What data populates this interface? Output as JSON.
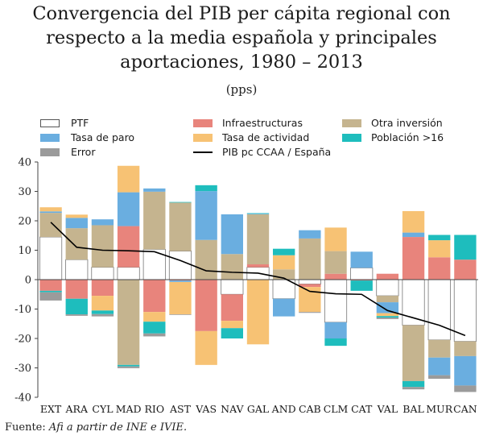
{
  "title_lines": [
    "Convergencia del PIB per cápita regional con",
    "respecto a la media española y principales",
    "aportaciones, 1980 – 2013"
  ],
  "subtitle": "(pps)",
  "source": {
    "prefix": "Fuente:",
    "text": "Afi a partir de INE e IVIE."
  },
  "legend": [
    {
      "name": "PTF",
      "color": "#ffffff",
      "kind": "box"
    },
    {
      "name": "Infraestructuras",
      "color": "#e8847c",
      "kind": "box"
    },
    {
      "name": "Otra inversión",
      "color": "#c5b48f",
      "kind": "box"
    },
    {
      "name": "Tasa de paro",
      "color": "#6aaee0",
      "kind": "box"
    },
    {
      "name": "Tasa de actividad",
      "color": "#f7c274",
      "kind": "box"
    },
    {
      "name": "Población >16",
      "color": "#1ebdbd",
      "kind": "box"
    },
    {
      "name": "Error",
      "color": "#9b9b9b",
      "kind": "box"
    },
    {
      "name": "PIB pc CCAA / España",
      "color": "#000000",
      "kind": "line"
    }
  ],
  "chart_data": {
    "type": "bar",
    "stacked": true,
    "categories": [
      "EXT",
      "ARA",
      "CYL",
      "MAD",
      "RIO",
      "AST",
      "VAS",
      "NAV",
      "GAL",
      "AND",
      "CAB",
      "CLM",
      "CAT",
      "VAL",
      "BAL",
      "MUR",
      "CAN"
    ],
    "ylim": [
      -40,
      40
    ],
    "yticks": [
      -40,
      -30,
      -20,
      -10,
      0,
      10,
      20,
      30,
      40
    ],
    "grid": false,
    "legend_position": "top",
    "series": [
      {
        "name": "PTF",
        "color": "#ffffff",
        "values": [
          14.5,
          6.8,
          4.2,
          4.2,
          10.3,
          9.7,
          0,
          -5,
          4.2,
          -6.5,
          -1.5,
          -14.5,
          4,
          -5.5,
          -15.5,
          -20.5,
          -21
        ]
      },
      {
        "name": "Infraestructuras",
        "color": "#e8847c",
        "values": [
          -3.8,
          -6.5,
          -5.5,
          14,
          -11,
          -0.3,
          -17.5,
          -9,
          1,
          0,
          -1,
          2,
          -0.3,
          2,
          14.5,
          7.6,
          6.8
        ]
      },
      {
        "name": "Otra inversión",
        "color": "#c5b48f",
        "values": [
          8.2,
          10.7,
          14.3,
          -29,
          19.6,
          16.5,
          13.5,
          8.7,
          17,
          3.5,
          14,
          7.7,
          0,
          -2.2,
          -19,
          -6,
          -5
        ]
      },
      {
        "name": "Tasa de paro",
        "color": "#6aaee0",
        "values": [
          0.5,
          3.5,
          2,
          11.5,
          1.1,
          -0.5,
          16.6,
          13.5,
          0.2,
          -6,
          2.8,
          -5.5,
          5.5,
          -3.7,
          1.5,
          -6,
          -10
        ]
      },
      {
        "name": "Tasa de actividad",
        "color": "#f7c274",
        "values": [
          1.4,
          1.1,
          -5,
          9,
          -3.3,
          -11,
          -11.5,
          -2.5,
          -22,
          4.8,
          -8.5,
          8,
          0,
          -1,
          7.3,
          5.8,
          0
        ]
      },
      {
        "name": "Población >16",
        "color": "#1ebdbd",
        "values": [
          -0.5,
          -5.3,
          -1.2,
          -0.5,
          -4,
          0.2,
          2,
          -3.5,
          0.2,
          2.2,
          0,
          -2.5,
          -3.5,
          -0.5,
          -2,
          1.8,
          8.4
        ]
      },
      {
        "name": "Error",
        "color": "#9b9b9b",
        "values": [
          -2.8,
          -0.5,
          -0.8,
          -0.6,
          -1,
          -0.2,
          0,
          0,
          0,
          0,
          -0.3,
          0,
          0,
          -0.5,
          -0.8,
          -1.2,
          -2.2
        ]
      }
    ],
    "line": {
      "name": "PIB pc CCAA / España",
      "color": "#000000",
      "values": [
        19.5,
        11,
        10,
        9.8,
        9.5,
        6.5,
        3,
        2.5,
        2.2,
        0.5,
        -4,
        -4.8,
        -5,
        -10.5,
        -13,
        -15.5,
        -19
      ]
    }
  }
}
